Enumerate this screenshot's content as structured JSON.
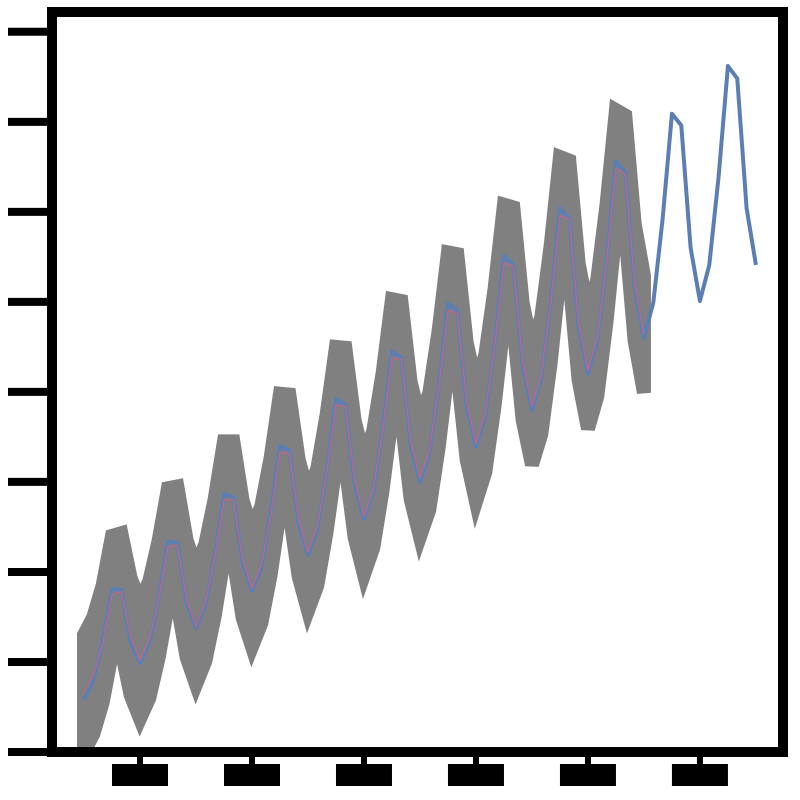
{
  "chart_data": {
    "type": "line",
    "x": [
      6,
      7,
      8,
      9,
      10,
      11,
      12,
      13,
      14,
      15,
      16,
      17,
      18,
      19,
      20,
      21,
      22,
      23,
      24,
      25,
      26,
      27,
      28,
      29,
      30,
      31,
      32,
      33,
      34,
      35,
      36,
      37,
      38,
      39,
      40,
      41,
      42,
      43,
      44,
      45,
      46,
      47,
      48,
      49,
      50,
      51,
      52,
      53,
      54,
      55,
      56,
      57,
      58,
      59,
      60,
      61,
      62,
      63,
      64,
      65,
      66,
      67,
      68,
      69,
      70,
      71,
      72,
      73,
      74,
      75,
      76,
      77,
      78
    ],
    "series": [
      {
        "color": "#5b7fb5",
        "values": [
          0.58,
          0.79,
          1.24,
          1.81,
          1.8,
          1.22,
          0.99,
          1.21,
          1.71,
          2.34,
          2.32,
          1.66,
          1.38,
          1.63,
          2.18,
          2.87,
          2.83,
          2.1,
          1.79,
          2.05,
          2.65,
          3.4,
          3.35,
          2.54,
          2.19,
          2.47,
          3.12,
          3.92,
          3.86,
          2.98,
          2.59,
          2.89,
          3.58,
          4.45,
          4.38,
          3.41,
          3.0,
          3.31,
          4.05,
          4.98,
          4.9,
          3.85,
          3.39,
          3.73,
          4.52,
          5.51,
          5.41,
          4.29,
          3.8,
          4.15,
          4.99,
          6.04,
          5.93,
          4.73,
          4.2,
          4.57,
          5.46,
          6.56,
          6.44,
          5.17,
          4.6,
          4.99,
          5.92,
          7.09,
          6.96,
          5.6,
          5.01,
          5.41,
          6.39,
          7.62,
          7.48,
          6.04,
          5.41
        ]
      },
      {
        "color": "#b56a8a",
        "band_color": "#808080",
        "interval": 0.65,
        "values": [
          0.65,
          0.85,
          1.2,
          1.75,
          1.78,
          1.28,
          1.02,
          1.25,
          1.7,
          2.28,
          2.3,
          1.7,
          1.4,
          1.66,
          2.16,
          2.8,
          2.8,
          2.14,
          1.82,
          2.08,
          2.62,
          3.33,
          3.32,
          2.6,
          2.22,
          2.5,
          3.1,
          3.85,
          3.84,
          3.03,
          2.62,
          2.92,
          3.56,
          4.38,
          4.36,
          3.46,
          3.04,
          3.34,
          4.03,
          4.9,
          4.88,
          3.9,
          3.43,
          3.76,
          4.5,
          5.43,
          5.4,
          4.34,
          3.84,
          4.18,
          4.97,
          5.96,
          5.92,
          4.78,
          4.24,
          4.6,
          5.44,
          6.48,
          6.42,
          5.22,
          4.64,
          null,
          null,
          null,
          null,
          null,
          null,
          null,
          null,
          null,
          null,
          null,
          null
        ]
      }
    ],
    "xlim": [
      2.57,
      80.9
    ],
    "xticks": [
      12,
      24,
      36,
      48,
      60,
      72
    ],
    "ylim": [
      0,
      8.22
    ],
    "yticks": [
      0,
      1,
      2,
      3,
      4,
      5,
      6,
      7,
      8
    ]
  }
}
